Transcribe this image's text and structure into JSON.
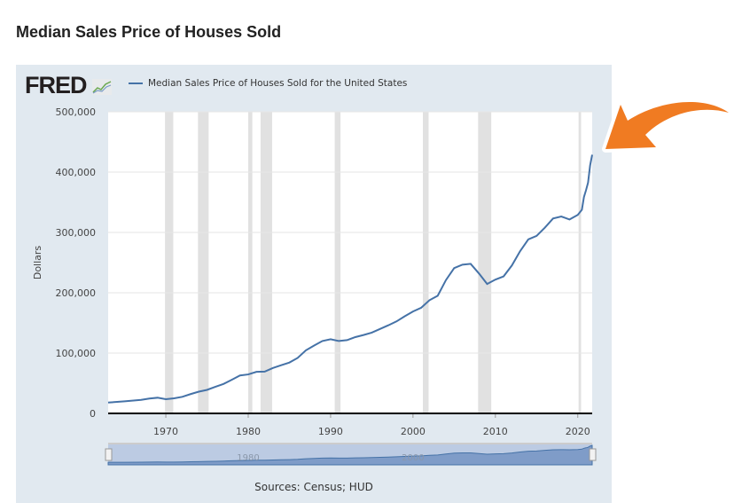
{
  "page_title": "Median Sales Price of Houses Sold",
  "logo": "FRED",
  "sources": "Sources: Census; HUD",
  "navigator_labels": [
    "1980",
    "2000"
  ],
  "colors": {
    "line": "#4572a7",
    "recession": "#e1e1e1",
    "arrow": "#f07b22"
  },
  "chart_data": {
    "type": "line",
    "title": "Median Sales Price of Houses Sold",
    "legend": "Median Sales Price of Houses Sold for the United States",
    "legend_placement": "top-left",
    "ylabel": "Dollars",
    "xlabel": "",
    "ylim": [
      0,
      500000
    ],
    "xlim": [
      1963,
      2021.75
    ],
    "yticks": [
      0,
      100000,
      200000,
      300000,
      400000,
      500000
    ],
    "ytick_labels": [
      "0",
      "100,000",
      "200,000",
      "300,000",
      "400,000",
      "500,000"
    ],
    "xticks": [
      1970,
      1980,
      1990,
      2000,
      2010,
      2020
    ],
    "xtick_labels": [
      "1970",
      "1980",
      "1990",
      "2000",
      "2010",
      "2020"
    ],
    "recessions": [
      [
        1969.9,
        1970.9
      ],
      [
        1973.9,
        1975.2
      ],
      [
        1980.0,
        1980.5
      ],
      [
        1981.5,
        1982.9
      ],
      [
        1990.5,
        1991.2
      ],
      [
        2001.2,
        2001.9
      ],
      [
        2007.9,
        2009.5
      ],
      [
        2020.1,
        2020.4
      ]
    ],
    "series": [
      {
        "name": "Median Sales Price of Houses Sold for the United States",
        "x": [
          1963,
          1965,
          1967,
          1968,
          1969,
          1970,
          1971,
          1972,
          1973,
          1974,
          1975,
          1976,
          1977,
          1978,
          1979,
          1980,
          1981,
          1982,
          1983,
          1984,
          1985,
          1986,
          1987,
          1988,
          1989,
          1990,
          1991,
          1992,
          1993,
          1994,
          1995,
          1996,
          1997,
          1998,
          1999,
          2000,
          2001,
          2002,
          2003,
          2004,
          2005,
          2006,
          2007,
          2008,
          2009,
          2010,
          2011,
          2012,
          2013,
          2014,
          2015,
          2016,
          2017,
          2018,
          2019,
          2020,
          2020.5,
          2020.75,
          2021,
          2021.25,
          2021.5,
          2021.75
        ],
        "y": [
          18000,
          20000,
          22500,
          24700,
          26000,
          23500,
          25000,
          27500,
          32000,
          36000,
          39000,
          44000,
          48800,
          55700,
          62900,
          64600,
          68900,
          69300,
          75300,
          79900,
          84300,
          92000,
          104500,
          112500,
          120000,
          123000,
          120000,
          121500,
          126500,
          130000,
          133900,
          140000,
          146000,
          152500,
          161000,
          169000,
          175200,
          187600,
          195000,
          221000,
          240900,
          246500,
          247900,
          232100,
          214500,
          221800,
          227200,
          245200,
          268900,
          288500,
          294200,
          307800,
          323100,
          326400,
          321500,
          329000,
          337500,
          358700,
          369800,
          382600,
          411200,
          428700
        ]
      }
    ]
  }
}
